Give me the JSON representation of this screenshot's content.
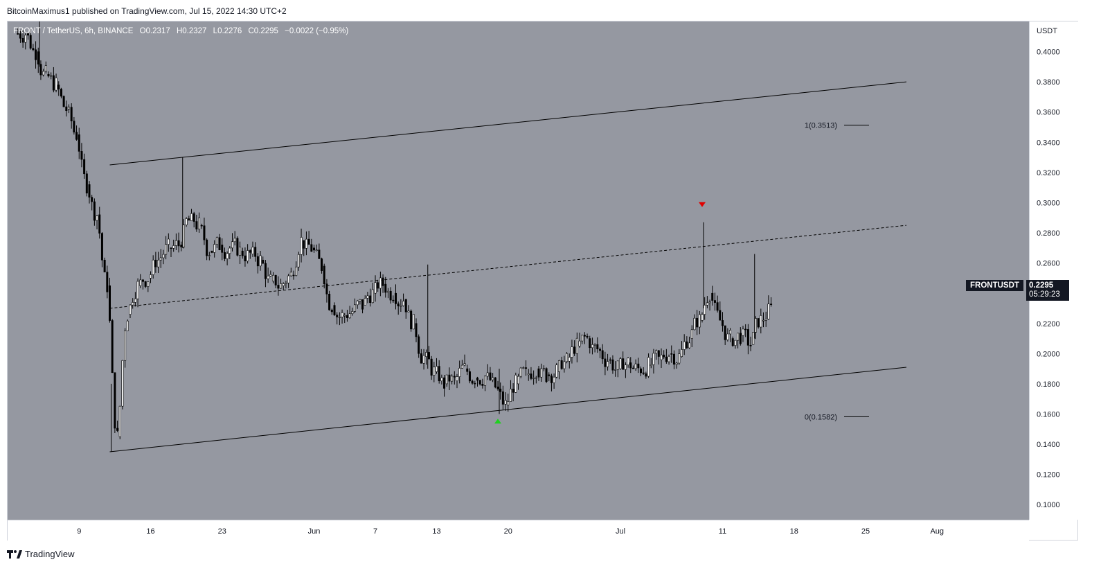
{
  "header": {
    "published_by": "BitcoinMaximus1 published on TradingView.com, Jul 15, 2022 14:30 UTC+2"
  },
  "legend": {
    "symbol": "FRONT / TetherUS, 6h, BINANCE",
    "open_label": "O",
    "open": "0.2317",
    "high_label": "H",
    "high": "0.2327",
    "low_label": "L",
    "low": "0.2276",
    "close_label": "C",
    "close": "0.2295",
    "change": "−0.0022 (−0.95%)"
  },
  "price_axis": {
    "unit": "USDT",
    "ticker": "FRONTUSDT",
    "last_price": "0.2295",
    "countdown": "05:29:23"
  },
  "brand": {
    "name": "TradingView",
    "logo": "tradingview-logo-icon"
  },
  "colors": {
    "background": "#9598a1",
    "candle": "#000000",
    "marker_up": "#1fd11f",
    "marker_down": "#e00000",
    "badge": "#131722"
  },
  "chart_data": {
    "type": "candlestick",
    "x_axis": {
      "ticks": [
        "9",
        "16",
        "23",
        "Jun",
        "7",
        "13",
        "20",
        "Jul",
        "11",
        "18",
        "25",
        "Aug"
      ],
      "tick_dates": [
        "2022-05-09",
        "2022-05-16",
        "2022-05-23",
        "2022-06-01",
        "2022-06-07",
        "2022-06-13",
        "2022-06-20",
        "2022-07-01",
        "2022-07-11",
        "2022-07-18",
        "2022-07-25",
        "2022-08-01"
      ],
      "range": [
        "2022-05-02",
        "2022-08-10"
      ]
    },
    "y_axis": {
      "ticks": [
        "0.4000",
        "0.3800",
        "0.3600",
        "0.3400",
        "0.3200",
        "0.3000",
        "0.2800",
        "0.2600",
        "0.2400",
        "0.2200",
        "0.2000",
        "0.1800",
        "0.1600",
        "0.1400",
        "0.1200",
        "0.1000"
      ],
      "range": [
        0.09,
        0.42
      ]
    },
    "series": [
      {
        "name": "FRONTUSDT",
        "interval": "6h",
        "daily_close": [
          [
            "2022-05-03",
            0.412
          ],
          [
            "2022-05-04",
            0.4
          ],
          [
            "2022-05-05",
            0.385
          ],
          [
            "2022-05-06",
            0.378
          ],
          [
            "2022-05-07",
            0.362
          ],
          [
            "2022-05-08",
            0.345
          ],
          [
            "2022-05-09",
            0.312
          ],
          [
            "2022-05-10",
            0.292
          ],
          [
            "2022-05-11",
            0.245
          ],
          [
            "2022-05-12",
            0.145
          ],
          [
            "2022-05-13",
            0.226
          ],
          [
            "2022-05-14",
            0.245
          ],
          [
            "2022-05-15",
            0.25
          ],
          [
            "2022-05-16",
            0.262
          ],
          [
            "2022-05-17",
            0.27
          ],
          [
            "2022-05-18",
            0.272
          ],
          [
            "2022-05-19",
            0.288
          ],
          [
            "2022-05-20",
            0.285
          ],
          [
            "2022-05-21",
            0.268
          ],
          [
            "2022-05-22",
            0.272
          ],
          [
            "2022-05-23",
            0.27
          ],
          [
            "2022-05-24",
            0.268
          ],
          [
            "2022-05-25",
            0.266
          ],
          [
            "2022-05-26",
            0.262
          ],
          [
            "2022-05-27",
            0.248
          ],
          [
            "2022-05-28",
            0.245
          ],
          [
            "2022-05-29",
            0.252
          ],
          [
            "2022-05-30",
            0.275
          ],
          [
            "2022-05-31",
            0.27
          ],
          [
            "2022-06-01",
            0.258
          ],
          [
            "2022-06-02",
            0.232
          ],
          [
            "2022-06-03",
            0.225
          ],
          [
            "2022-06-04",
            0.228
          ],
          [
            "2022-06-05",
            0.232
          ],
          [
            "2022-06-06",
            0.24
          ],
          [
            "2022-06-07",
            0.246
          ],
          [
            "2022-06-08",
            0.24
          ],
          [
            "2022-06-09",
            0.236
          ],
          [
            "2022-06-10",
            0.22
          ],
          [
            "2022-06-11",
            0.198
          ],
          [
            "2022-06-12",
            0.188
          ],
          [
            "2022-06-13",
            0.18
          ],
          [
            "2022-06-14",
            0.182
          ],
          [
            "2022-06-15",
            0.19
          ],
          [
            "2022-06-16",
            0.184
          ],
          [
            "2022-06-17",
            0.185
          ],
          [
            "2022-06-18",
            0.178
          ],
          [
            "2022-06-19",
            0.166
          ],
          [
            "2022-06-20",
            0.18
          ],
          [
            "2022-06-21",
            0.186
          ],
          [
            "2022-06-22",
            0.19
          ],
          [
            "2022-06-23",
            0.186
          ],
          [
            "2022-06-24",
            0.188
          ],
          [
            "2022-06-25",
            0.195
          ],
          [
            "2022-06-26",
            0.205
          ],
          [
            "2022-06-27",
            0.21
          ],
          [
            "2022-06-28",
            0.203
          ],
          [
            "2022-06-29",
            0.196
          ],
          [
            "2022-06-30",
            0.19
          ],
          [
            "2022-07-01",
            0.194
          ],
          [
            "2022-07-02",
            0.19
          ],
          [
            "2022-07-03",
            0.192
          ],
          [
            "2022-07-04",
            0.196
          ],
          [
            "2022-07-05",
            0.2
          ],
          [
            "2022-07-06",
            0.198
          ],
          [
            "2022-07-07",
            0.21
          ],
          [
            "2022-07-08",
            0.222
          ],
          [
            "2022-07-09",
            0.24
          ],
          [
            "2022-07-10",
            0.222
          ],
          [
            "2022-07-11",
            0.21
          ],
          [
            "2022-07-12",
            0.212
          ],
          [
            "2022-07-13",
            0.206
          ],
          [
            "2022-07-14",
            0.222
          ],
          [
            "2022-07-15",
            0.2295
          ]
        ]
      }
    ],
    "channel": {
      "upper": [
        [
          "2022-05-12",
          0.325
        ],
        [
          "2022-07-29",
          0.38
        ]
      ],
      "middle": [
        [
          "2022-05-12",
          0.23
        ],
        [
          "2022-07-29",
          0.285
        ]
      ],
      "lower": [
        [
          "2022-05-12",
          0.135
        ],
        [
          "2022-07-29",
          0.191
        ]
      ]
    },
    "fib_levels": [
      {
        "label": "1(0.3513)",
        "value": 0.3513
      },
      {
        "label": "0(0.1582)",
        "value": 0.1582
      }
    ],
    "markers": [
      {
        "type": "down",
        "date": "2022-07-09",
        "price": 0.2985
      },
      {
        "type": "up",
        "date": "2022-06-19",
        "price": 0.1555
      }
    ],
    "grid": false,
    "legend": "top-left"
  }
}
